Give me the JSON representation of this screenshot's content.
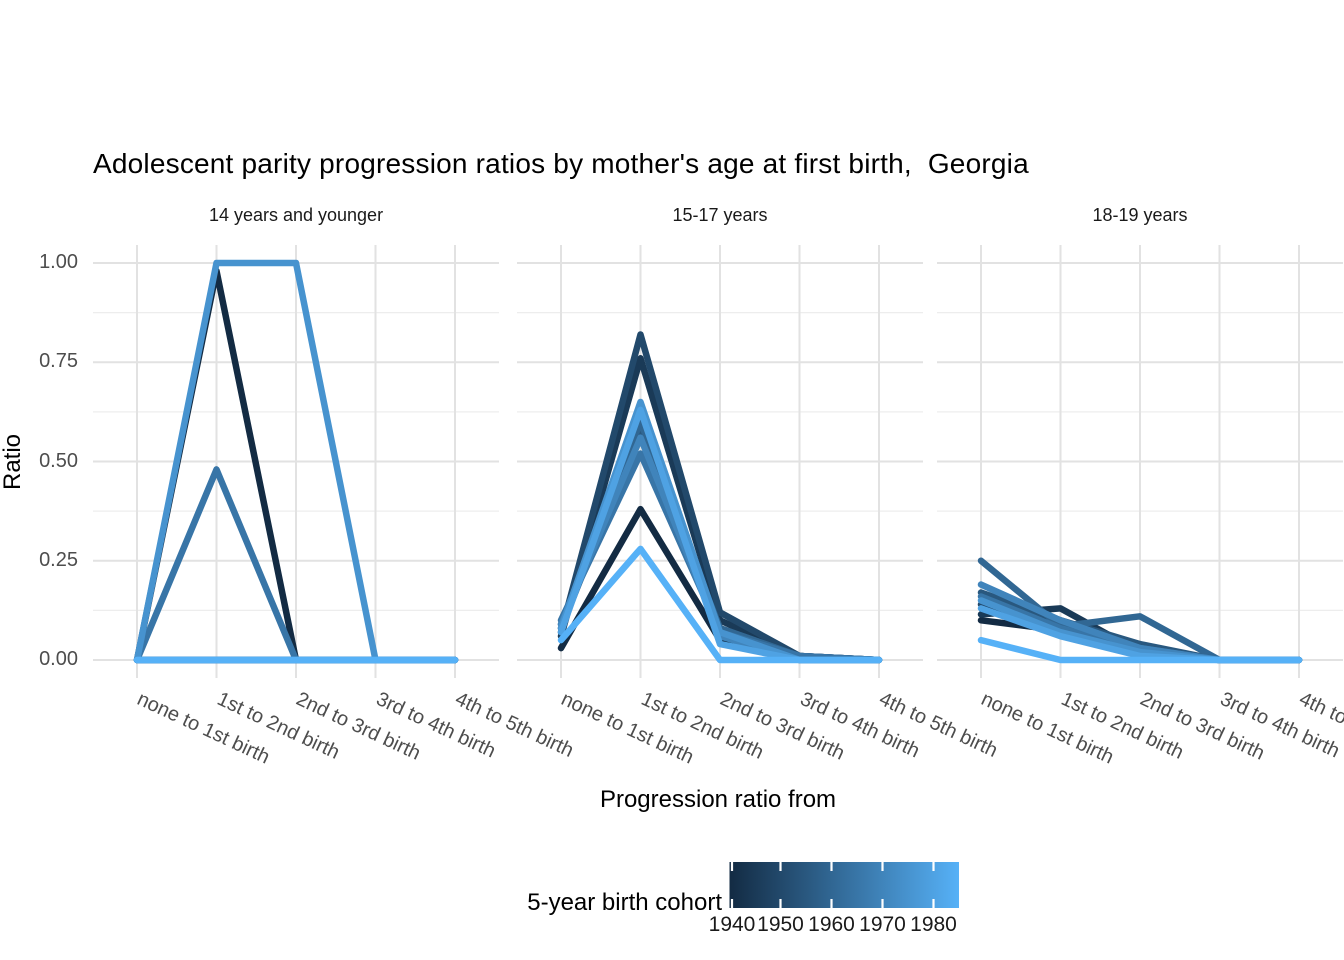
{
  "page": {
    "title": "Adolescent parity progression ratios by mother's age at first birth,  Georgia"
  },
  "chart_data": {
    "type": "line",
    "title": "Adolescent parity progression ratios by mother's age at first birth,  Georgia",
    "xlabel": "Progression ratio from",
    "ylabel": "Ratio",
    "ylim": [
      0,
      1
    ],
    "ytick_values": [
      0,
      0.25,
      0.5,
      0.75,
      1.0
    ],
    "ytick_labels": [
      "0.00",
      "0.25",
      "0.50",
      "0.75",
      "1.00"
    ],
    "minor_gridlines": [
      0.125,
      0.375,
      0.625,
      0.875
    ],
    "grid": "major-and-minor, light gray, no axis lines (ggplot theme_minimal style)",
    "categories": [
      "none to 1st birth",
      "1st to 2nd birth",
      "2nd to 3rd birth",
      "3rd to 4th birth",
      "4th to 5th birth"
    ],
    "facets": [
      {
        "label": "14 years and younger",
        "series": [
          {
            "name": "1940",
            "color": "#132B43",
            "values": [
              0,
              0.98,
              0,
              0,
              0
            ]
          },
          {
            "name": "1945",
            "color": "#1A3A57",
            "values": [
              0,
              0,
              0,
              0,
              0
            ]
          },
          {
            "name": "1950",
            "color": "#22496B",
            "values": [
              0,
              0,
              0,
              0,
              0
            ]
          },
          {
            "name": "1955",
            "color": "#29587F",
            "values": [
              0,
              0,
              0,
              0,
              0
            ]
          },
          {
            "name": "1960",
            "color": "#316793",
            "values": [
              0,
              0,
              0,
              0,
              0
            ]
          },
          {
            "name": "1965",
            "color": "#3875A7",
            "values": [
              0,
              0.48,
              0,
              0,
              0
            ]
          },
          {
            "name": "1970",
            "color": "#4084BB",
            "values": [
              0,
              0,
              0,
              0,
              0
            ]
          },
          {
            "name": "1975",
            "color": "#4793CF",
            "values": [
              0,
              1.0,
              1.0,
              0,
              0
            ]
          },
          {
            "name": "1980",
            "color": "#4FA2E3",
            "values": [
              0,
              0,
              0,
              0,
              0
            ]
          },
          {
            "name": "1985",
            "color": "#56B1F7",
            "values": [
              0,
              0,
              0,
              0,
              0
            ]
          }
        ]
      },
      {
        "label": "15-17 years",
        "series": [
          {
            "name": "1940",
            "color": "#132B43",
            "values": [
              0.03,
              0.38,
              0.05,
              0,
              0
            ]
          },
          {
            "name": "1945",
            "color": "#1A3A57",
            "values": [
              0.06,
              0.76,
              0.1,
              0.01,
              0
            ]
          },
          {
            "name": "1950",
            "color": "#22496B",
            "values": [
              0.07,
              0.82,
              0.12,
              0.01,
              0
            ]
          },
          {
            "name": "1955",
            "color": "#29587F",
            "values": [
              0.08,
              0.58,
              0.08,
              0.01,
              0
            ]
          },
          {
            "name": "1960",
            "color": "#316793",
            "values": [
              0.09,
              0.6,
              0.08,
              0.01,
              0
            ]
          },
          {
            "name": "1965",
            "color": "#3875A7",
            "values": [
              0.1,
              0.52,
              0.07,
              0.01,
              0
            ]
          },
          {
            "name": "1970",
            "color": "#4084BB",
            "values": [
              0.09,
              0.56,
              0.06,
              0,
              0
            ]
          },
          {
            "name": "1975",
            "color": "#4793CF",
            "values": [
              0.08,
              0.65,
              0.07,
              0,
              0
            ]
          },
          {
            "name": "1980",
            "color": "#4FA2E3",
            "values": [
              0.07,
              0.63,
              0.04,
              0,
              0
            ]
          },
          {
            "name": "1985",
            "color": "#56B1F7",
            "values": [
              0.05,
              0.28,
              0,
              0,
              0
            ]
          }
        ]
      },
      {
        "label": "18-19 years",
        "series": [
          {
            "name": "1940",
            "color": "#132B43",
            "values": [
              0.1,
              0.075,
              0.02,
              0,
              0
            ]
          },
          {
            "name": "1945",
            "color": "#1A3A57",
            "values": [
              0.115,
              0.13,
              0.02,
              0,
              0
            ]
          },
          {
            "name": "1950",
            "color": "#22496B",
            "values": [
              0.14,
              0.09,
              0.02,
              0,
              0
            ]
          },
          {
            "name": "1955",
            "color": "#29587F",
            "values": [
              0.17,
              0.1,
              0.04,
              0,
              0
            ]
          },
          {
            "name": "1960",
            "color": "#316793",
            "values": [
              0.25,
              0.085,
              0.11,
              0,
              0
            ]
          },
          {
            "name": "1965",
            "color": "#3875A7",
            "values": [
              0.16,
              0.08,
              0.03,
              0,
              0
            ]
          },
          {
            "name": "1970",
            "color": "#4084BB",
            "values": [
              0.19,
              0.1,
              0.03,
              0,
              0
            ]
          },
          {
            "name": "1975",
            "color": "#4793CF",
            "values": [
              0.15,
              0.07,
              0.02,
              0,
              0
            ]
          },
          {
            "name": "1980",
            "color": "#4FA2E3",
            "values": [
              0.13,
              0.06,
              0.01,
              0,
              0
            ]
          },
          {
            "name": "1985",
            "color": "#56B1F7",
            "values": [
              0.05,
              0,
              0,
              0,
              0
            ]
          }
        ]
      }
    ],
    "legend": {
      "title": "5-year birth cohort",
      "orientation": "horizontal colourbar, bottom",
      "gradient_low": "#132B43",
      "gradient_high": "#56B1F7",
      "domain": [
        1940,
        1985
      ],
      "tick_years": [
        1940,
        1950,
        1960,
        1970,
        1980
      ],
      "tick_labels": [
        "1940",
        "1950",
        "1960",
        "1970",
        "1980"
      ]
    }
  }
}
